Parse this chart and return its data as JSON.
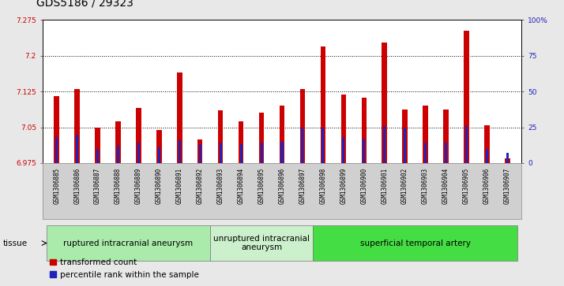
{
  "title": "GDS5186 / 29323",
  "samples": [
    "GSM1306885",
    "GSM1306886",
    "GSM1306887",
    "GSM1306888",
    "GSM1306889",
    "GSM1306890",
    "GSM1306891",
    "GSM1306892",
    "GSM1306893",
    "GSM1306894",
    "GSM1306895",
    "GSM1306896",
    "GSM1306897",
    "GSM1306898",
    "GSM1306899",
    "GSM1306900",
    "GSM1306901",
    "GSM1306902",
    "GSM1306903",
    "GSM1306904",
    "GSM1306905",
    "GSM1306906",
    "GSM1306907"
  ],
  "transformed_count": [
    7.115,
    7.13,
    7.05,
    7.063,
    7.09,
    7.045,
    7.165,
    7.025,
    7.085,
    7.063,
    7.08,
    7.095,
    7.13,
    7.22,
    7.118,
    7.112,
    7.228,
    7.087,
    7.096,
    7.087,
    7.253,
    7.055,
    6.985
  ],
  "percentile_rank": [
    18,
    20,
    10,
    12,
    14,
    11,
    16,
    13,
    14,
    13,
    14,
    15,
    25,
    25,
    18,
    17,
    26,
    25,
    14,
    14,
    26,
    10,
    7
  ],
  "ylim_left": [
    6.975,
    7.275
  ],
  "ylim_right": [
    0,
    100
  ],
  "yticks_left": [
    6.975,
    7.05,
    7.125,
    7.2,
    7.275
  ],
  "ytick_labels_left": [
    "6.975",
    "7.05",
    "7.125",
    "7.2",
    "7.275"
  ],
  "yticks_right": [
    0,
    25,
    50,
    75,
    100
  ],
  "ytick_labels_right": [
    "0",
    "25",
    "50",
    "75",
    "100%"
  ],
  "groups": [
    {
      "label": "ruptured intracranial aneurysm",
      "start": 0,
      "end": 8
    },
    {
      "label": "unruptured intracranial\naneurysm",
      "start": 8,
      "end": 13
    },
    {
      "label": "superficial temporal artery",
      "start": 13,
      "end": 23
    }
  ],
  "group_colors": [
    "#aaeaaa",
    "#ccf0cc",
    "#44dd44"
  ],
  "bar_color": "#cc0000",
  "percentile_color": "#2222bb",
  "background_color": "#e8e8e8",
  "plot_bg_color": "#ffffff",
  "xtick_bg_color": "#d0d0d0",
  "title_fontsize": 10,
  "tick_fontsize": 6.5,
  "xtick_fontsize": 5.5,
  "group_label_fontsize": 7.5,
  "legend_fontsize": 7.5,
  "bar_width": 0.25,
  "percentile_bar_width": 0.12
}
